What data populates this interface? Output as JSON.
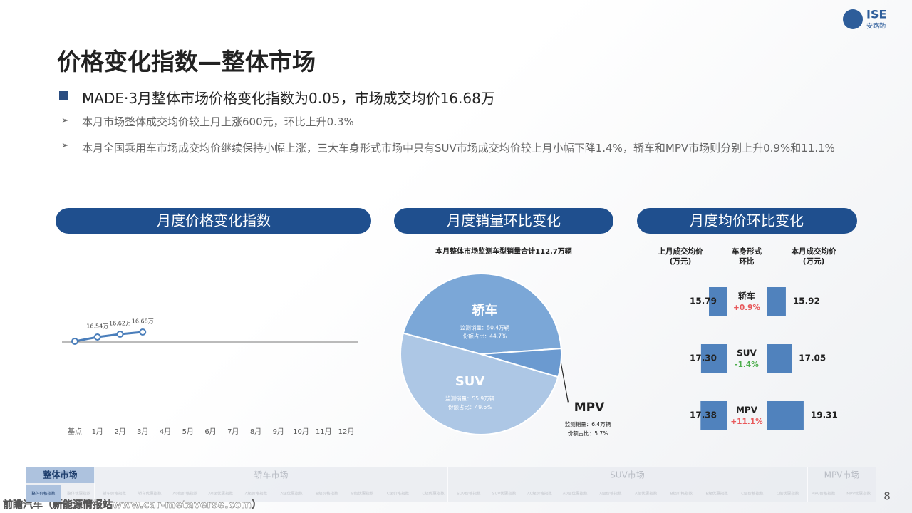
{
  "logo": {
    "mark": "ISE",
    "name": "安路勤"
  },
  "header": {
    "title": "价格变化指数—整体市场"
  },
  "bullets": {
    "main": "MADE·3月整体市场价格变化指数为0.05，市场成交均价16.68万",
    "subs": [
      "本月市场整体成交均价较上月上涨600元，环比上升0.3%",
      "本月全国乘用车市场成交均价继续保持小幅上涨，三大车身形式市场中只有SUV市场成交均价较上月小幅下降1.4%，轿车和MPV市场则分别上升0.9%和11.1%"
    ]
  },
  "panels": [
    "月度价格变化指数",
    "月度销量环比变化",
    "月度均价环比变化"
  ],
  "chart_data": [
    {
      "type": "line",
      "categories": [
        "基点",
        "1月",
        "2月",
        "3月",
        "4月",
        "5月",
        "6月",
        "7月",
        "8月",
        "9月",
        "10月",
        "11月",
        "12月"
      ],
      "values": [
        16.42,
        16.54,
        16.62,
        16.68,
        null,
        null,
        null,
        null,
        null,
        null,
        null,
        null,
        null
      ],
      "value_labels": [
        null,
        "16.54万",
        "16.62万",
        "16.68万",
        null,
        null,
        null,
        null,
        null,
        null,
        null,
        null,
        null
      ],
      "ylim": [
        16.4,
        18.4
      ],
      "color": "#4a7ebb"
    },
    {
      "type": "pie",
      "title": "本月整体市场监测车型销量合计112.7万辆",
      "categories": [
        "轿车",
        "SUV",
        "MPV"
      ],
      "values": [
        44.7,
        49.6,
        5.7
      ],
      "colors": [
        "#7ba7d7",
        "#adc7e5",
        "#6b9ad0"
      ],
      "sales_labels": [
        "监测销量：50.4万辆",
        "监测销量：55.9万辆",
        "监测销量：6.4万辆"
      ],
      "share_labels": [
        "份额占比：44.7%",
        "份额占比：49.6%",
        "份额占比：5.7%"
      ]
    },
    {
      "type": "bar",
      "column_headers": [
        [
          "上月成交均价",
          "(万元)"
        ],
        [
          "车身形式",
          "环比"
        ],
        [
          "本月成交均价",
          "(万元)"
        ]
      ],
      "categories": [
        "轿车",
        "SUV",
        "MPV"
      ],
      "series": [
        {
          "name": "上月成交均价",
          "color": "#5082bd",
          "values": [
            15.79,
            17.3,
            17.38
          ],
          "value_labels": [
            "15.79",
            "17.30",
            "17.38"
          ]
        },
        {
          "name": "本月成交均价",
          "color": "#5082bd",
          "values": [
            15.92,
            17.05,
            19.31
          ]
        }
      ],
      "changes": [
        0.9,
        -1.4,
        11.1
      ],
      "change_labels": [
        "+0.9%",
        "-1.4%",
        "+11.1%"
      ],
      "xlim": [
        12.4,
        20
      ]
    }
  ],
  "nav": {
    "tabs": [
      "整体市场",
      "轿车市场",
      "SUV市场",
      "MPV市场"
    ],
    "items": [
      "整体价格指数",
      "整体优惠指数",
      "轿车价格指数",
      "轿车优惠指数",
      "A0级价格指数",
      "A0级优惠指数",
      "A级价格指数",
      "A级优惠指数",
      "B级价格指数",
      "B级优惠指数",
      "C级价格指数",
      "C级优惠指数",
      "SUV价格指数",
      "SUV优惠指数",
      "A0级价格指数",
      "A0级优惠指数",
      "A级价格指数",
      "A级优惠指数",
      "B级价格指数",
      "B级优惠指数",
      "C级价格指数",
      "C级优惠指数",
      "MPV价格指数",
      "MPV优惠指数"
    ]
  },
  "footer": {
    "watermark": "前瞻汽车（新能源情报站www.car-metaverse.com）",
    "page": "8"
  }
}
